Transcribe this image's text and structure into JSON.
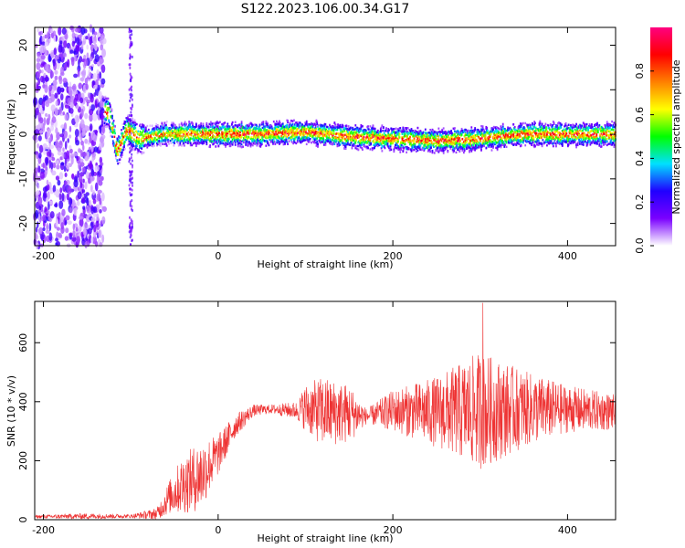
{
  "title": "S122.2023.106.00.34.G17",
  "chart_data": [
    {
      "type": "heatmap",
      "xlabel": "Height of straight line (km)",
      "ylabel": "Frequency (Hz)",
      "xlim": [
        -210,
        455
      ],
      "ylim": [
        -25,
        24
      ],
      "xticks": [
        -200,
        0,
        200,
        400
      ],
      "yticks": [
        -20,
        -10,
        0,
        10,
        20
      ],
      "grid": false,
      "colorbar": {
        "label": "Normalized spectral amplitude",
        "range": [
          0,
          1
        ],
        "ticks": [
          0.0,
          0.2,
          0.4,
          0.6,
          0.8
        ],
        "colormap": [
          "#ffffff",
          "#7a00ff",
          "#2000ff",
          "#00e0ff",
          "#00ff00",
          "#ffff00",
          "#ff8000",
          "#ff0000",
          "#ff0080"
        ]
      },
      "ridge": {
        "x": [
          -125,
          -115,
          -105,
          -90,
          -60,
          -30,
          0,
          50,
          100,
          150,
          200,
          250,
          300,
          350,
          400,
          455
        ],
        "frequency": [
          5,
          -4,
          1,
          -1,
          0,
          0,
          0,
          0,
          0.5,
          -0.5,
          -1,
          -1.5,
          -1,
          0,
          0,
          0
        ]
      }
    },
    {
      "type": "line",
      "xlabel": "Height of straight line (km)",
      "ylabel": "SNR (10 * v/v)",
      "xlim": [
        -210,
        455
      ],
      "ylim": [
        0,
        740
      ],
      "xticks": [
        -200,
        0,
        200,
        400
      ],
      "yticks": [
        0,
        200,
        400,
        600
      ],
      "grid": false,
      "series": [
        {
          "color": "#ee3333",
          "envelope_x": [
            -210,
            -150,
            -100,
            -70,
            -55,
            -40,
            -20,
            0,
            20,
            40,
            60,
            90,
            100,
            120,
            150,
            170,
            200,
            250,
            300,
            350,
            400,
            455
          ],
          "mean": [
            10,
            12,
            12,
            20,
            80,
            120,
            150,
            220,
            320,
            370,
            375,
            370,
            380,
            365,
            360,
            350,
            370,
            365,
            370,
            375,
            375,
            365
          ],
          "spread": [
            5,
            10,
            6,
            20,
            60,
            100,
            120,
            70,
            40,
            20,
            15,
            30,
            80,
            120,
            100,
            25,
            70,
            120,
            200,
            130,
            80,
            60
          ],
          "peak": {
            "x": 303,
            "y": 735
          }
        }
      ]
    }
  ]
}
